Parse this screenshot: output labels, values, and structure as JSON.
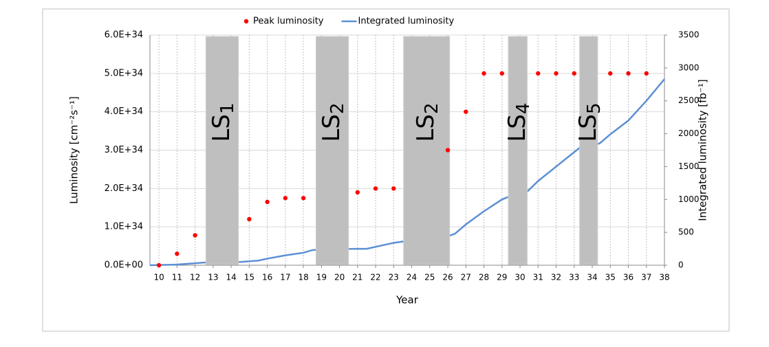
{
  "chart_data": {
    "type": "combo",
    "legend": "top",
    "xlabel": "Year",
    "ylabel": "Luminosity [cm⁻²s⁻¹]",
    "y2label": "Integrated luminosity [fb⁻¹]",
    "xlim": [
      9.5,
      38
    ],
    "xticks": [
      10,
      11,
      12,
      13,
      14,
      15,
      16,
      17,
      18,
      19,
      20,
      21,
      22,
      23,
      24,
      25,
      26,
      27,
      28,
      29,
      30,
      31,
      32,
      33,
      34,
      35,
      36,
      37,
      38
    ],
    "ylim": [
      0,
      6e+34
    ],
    "yticks": [
      {
        "value": 0,
        "label": "0.0E+00"
      },
      {
        "value": 1e+34,
        "label": "1.0E+34"
      },
      {
        "value": 2e+34,
        "label": "2.0E+34"
      },
      {
        "value": 3e+34,
        "label": "3.0E+34"
      },
      {
        "value": 4e+34,
        "label": "4.0E+34"
      },
      {
        "value": 5e+34,
        "label": "5.0E+34"
      },
      {
        "value": 6e+34,
        "label": "6.0E+34"
      }
    ],
    "y2lim": [
      0,
      3500
    ],
    "y2ticks": [
      0,
      500,
      1000,
      1500,
      2000,
      2500,
      3000,
      3500
    ],
    "grid": true,
    "series": [
      {
        "name": "Peak luminosity",
        "type": "scatter",
        "color": "#ff0000",
        "x": [
          10,
          11,
          12,
          15,
          16,
          17,
          18,
          21,
          22,
          23,
          26,
          27,
          28,
          29,
          31,
          32,
          33,
          35,
          36,
          37
        ],
        "values": [
          0,
          3e+33,
          7.8e+33,
          1.2e+34,
          1.65e+34,
          1.75e+34,
          1.75e+34,
          1.9e+34,
          2e+34,
          2e+34,
          3e+34,
          4e+34,
          5e+34,
          5e+34,
          5e+34,
          5e+34,
          5e+34,
          5e+34,
          5e+34,
          5e+34
        ]
      },
      {
        "name": "Integrated luminosity",
        "type": "line",
        "color": "#5b8fd4",
        "axis": "y2",
        "x": [
          9.5,
          11,
          12.5,
          14.5,
          15.5,
          16,
          17,
          18,
          18.5,
          19,
          21,
          21.5,
          22,
          23,
          24,
          25,
          26,
          26.4,
          27,
          28,
          29,
          29.9,
          30.4,
          31,
          32,
          33,
          33.5,
          34.4,
          35,
          36,
          37,
          38
        ],
        "values": [
          0,
          10,
          40,
          50,
          70,
          100,
          150,
          190,
          230,
          240,
          250,
          250,
          280,
          340,
          380,
          420,
          440,
          480,
          620,
          820,
          1000,
          1100,
          1120,
          1280,
          1500,
          1720,
          1830,
          1850,
          1990,
          2200,
          2500,
          2830
        ]
      }
    ],
    "annotations": [
      {
        "text": "LS",
        "sub": "1",
        "x_range": [
          12.6,
          14.4
        ]
      },
      {
        "text": "LS",
        "sub": "2",
        "x_range": [
          18.7,
          20.5
        ]
      },
      {
        "text": "LS",
        "sub": "2",
        "x_range": [
          23.55,
          26.1
        ]
      },
      {
        "text": "LS",
        "sub": "4",
        "x_range": [
          29.35,
          30.4
        ]
      },
      {
        "text": "LS",
        "sub": "5",
        "x_range": [
          33.3,
          34.3
        ]
      }
    ]
  }
}
